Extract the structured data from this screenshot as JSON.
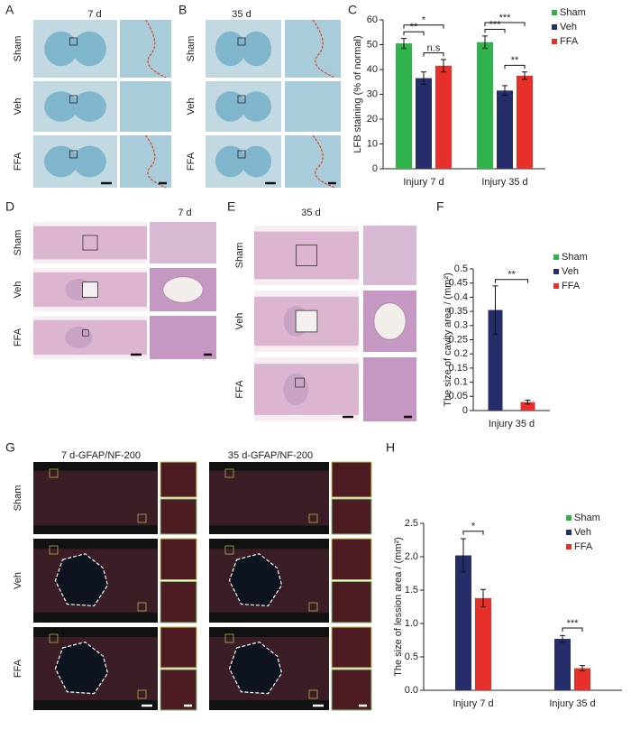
{
  "image_panels": [
    {
      "letter": "A",
      "titles": [
        "7 d"
      ],
      "rows": [
        "Sham",
        "Veh",
        "FFA"
      ]
    },
    {
      "letter": "B",
      "titles": [
        "35 d"
      ],
      "rows": [
        "Sham",
        "Veh",
        "FFA"
      ]
    },
    {
      "letter": "D",
      "titles": [
        "7 d"
      ],
      "rows": [
        "Sham",
        "Veh",
        "FFA"
      ]
    },
    {
      "letter": "E",
      "titles": [
        "35 d"
      ],
      "rows": [
        "Sham",
        "Veh",
        "FFA"
      ]
    },
    {
      "letter": "G",
      "titles": [
        "7 d-GFAP/NF-200",
        "35 d-GFAP/NF-200"
      ],
      "rows": [
        "Sham",
        "Veh",
        "FFA"
      ]
    }
  ],
  "chart_data": [
    {
      "type": "bar",
      "panel": "C",
      "ylabel": "LFB staining (% of normal)",
      "categories": [
        "Injury 7 d",
        "Injury 35 d"
      ],
      "series": [
        {
          "name": "Sham",
          "color": "#2fb34a",
          "values": [
            50.5,
            51
          ],
          "errors": [
            2,
            2.5
          ]
        },
        {
          "name": "Veh",
          "color": "#252e6b",
          "values": [
            36.5,
            31.5
          ],
          "errors": [
            2.5,
            2
          ]
        },
        {
          "name": "FFA",
          "color": "#e8302a",
          "values": [
            41.5,
            37.5
          ],
          "errors": [
            2.5,
            1.5
          ]
        }
      ],
      "ylim": [
        0,
        60
      ],
      "yticks": [
        0,
        10,
        20,
        30,
        40,
        50,
        60
      ],
      "brackets": [
        {
          "label": "n.s",
          "category": 0,
          "pair": [
            1,
            2
          ]
        },
        {
          "label": "**",
          "category": 0,
          "pair": [
            0,
            1
          ]
        },
        {
          "label": "*",
          "category": 0,
          "pair": [
            0,
            2
          ]
        },
        {
          "label": "**",
          "category": 1,
          "pair": [
            1,
            2
          ]
        },
        {
          "label": "***",
          "category": 1,
          "pair": [
            0,
            1
          ]
        },
        {
          "label": "***",
          "category": 1,
          "pair": [
            0,
            2
          ]
        }
      ]
    },
    {
      "type": "bar",
      "panel": "F",
      "ylabel": "The size of cavity area / (mm²)",
      "categories": [
        "Injury 35 d"
      ],
      "series": [
        {
          "name": "Sham",
          "color": "#2fb34a",
          "values": [
            null
          ],
          "errors": [
            null
          ]
        },
        {
          "name": "Veh",
          "color": "#252e6b",
          "values": [
            0.355
          ],
          "errors": [
            0.085
          ]
        },
        {
          "name": "FFA",
          "color": "#e8302a",
          "values": [
            0.03
          ],
          "errors": [
            0.007
          ]
        }
      ],
      "ylim": [
        0,
        0.5
      ],
      "yticks": [
        0,
        0.05,
        0.1,
        0.15,
        0.2,
        0.25,
        0.3,
        0.35,
        0.4,
        0.45,
        0.5
      ],
      "brackets": [
        {
          "label": "**",
          "category": 0,
          "pair": [
            1,
            2
          ]
        }
      ]
    },
    {
      "type": "bar",
      "panel": "H",
      "ylabel": "The size of lession area / (mm²)",
      "categories": [
        "Injury 7 d",
        "Injury 35 d"
      ],
      "series": [
        {
          "name": "Sham",
          "color": "#2fb34a",
          "values": [
            null,
            null
          ],
          "errors": [
            null,
            null
          ]
        },
        {
          "name": "Veh",
          "color": "#252e6b",
          "values": [
            2.02,
            0.77
          ],
          "errors": [
            0.25,
            0.05
          ]
        },
        {
          "name": "FFA",
          "color": "#e8302a",
          "values": [
            1.38,
            0.33
          ],
          "errors": [
            0.13,
            0.04
          ]
        }
      ],
      "ylim": [
        0,
        2.5
      ],
      "yticks": [
        {
          "value": 0,
          "label": "0.0"
        },
        {
          "value": 0.5,
          "label": "0.5"
        },
        {
          "value": 1,
          "label": "1.0"
        },
        {
          "value": 1.5,
          "label": "1.5"
        },
        {
          "value": 2,
          "label": "2.0"
        },
        {
          "value": 2.5,
          "label": "2.5"
        }
      ],
      "brackets": [
        {
          "label": "*",
          "category": 0,
          "pair": [
            1,
            2
          ]
        },
        {
          "label": "***",
          "category": 1,
          "pair": [
            1,
            2
          ]
        }
      ]
    }
  ]
}
